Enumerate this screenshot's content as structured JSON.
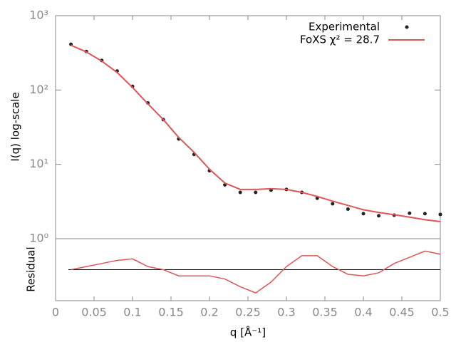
{
  "chart_data": [
    {
      "type": "line",
      "ylabel": "I(q) log-scale",
      "log_y": true,
      "xlim": [
        0,
        0.5
      ],
      "ylim": [
        1,
        1000
      ],
      "yticks": [
        {
          "value": 1,
          "label": "10⁰"
        },
        {
          "value": 10,
          "label": "10¹"
        },
        {
          "value": 100,
          "label": "10²"
        },
        {
          "value": 1000,
          "label": "10³"
        }
      ],
      "x": [
        0.02,
        0.04,
        0.06,
        0.08,
        0.1,
        0.12,
        0.14,
        0.16,
        0.18,
        0.2,
        0.22,
        0.24,
        0.26,
        0.28,
        0.3,
        0.32,
        0.34,
        0.36,
        0.38,
        0.4,
        0.42,
        0.44,
        0.46,
        0.48,
        0.5
      ],
      "series": [
        {
          "name": "Experimental",
          "color": "#222222",
          "marker": true,
          "values": [
            412,
            330,
            250,
            180,
            112,
            67,
            40,
            22,
            13.6,
            8.2,
            5.3,
            4.2,
            4.2,
            4.5,
            4.6,
            4.2,
            3.5,
            2.95,
            2.5,
            2.17,
            2.03,
            2.07,
            2.2,
            2.17,
            2.12
          ]
        },
        {
          "name": "FoXS χ² = 28.7",
          "color": "#e05555",
          "marker": false,
          "values": [
            400,
            325,
            245,
            172,
            108,
            65,
            40,
            23,
            14.5,
            8.6,
            5.6,
            4.6,
            4.6,
            4.7,
            4.6,
            4.2,
            3.7,
            3.2,
            2.8,
            2.45,
            2.25,
            2.1,
            1.95,
            1.8,
            1.7
          ]
        }
      ]
    },
    {
      "type": "line",
      "ylabel": "Residual",
      "xlabel": "q [Å⁻¹]",
      "xlim": [
        0,
        0.5
      ],
      "ylim": [
        -1,
        1
      ],
      "reference_line": 0,
      "xticks": [
        0,
        0.05,
        0.1,
        0.15,
        0.2,
        0.25,
        0.3,
        0.35,
        0.4,
        0.45,
        0.5
      ],
      "x": [
        0.02,
        0.04,
        0.06,
        0.08,
        0.1,
        0.12,
        0.14,
        0.16,
        0.18,
        0.2,
        0.22,
        0.24,
        0.26,
        0.28,
        0.3,
        0.32,
        0.34,
        0.36,
        0.38,
        0.4,
        0.42,
        0.44,
        0.46,
        0.48,
        0.5
      ],
      "color": "#e05555",
      "values": [
        0,
        0.1,
        0.2,
        0.3,
        0.35,
        0.1,
        0,
        -0.2,
        -0.2,
        -0.2,
        -0.3,
        -0.55,
        -0.75,
        -0.4,
        0.1,
        0.45,
        0.45,
        0.1,
        -0.15,
        -0.2,
        -0.1,
        0.2,
        0.4,
        0.6,
        0.5
      ]
    }
  ]
}
